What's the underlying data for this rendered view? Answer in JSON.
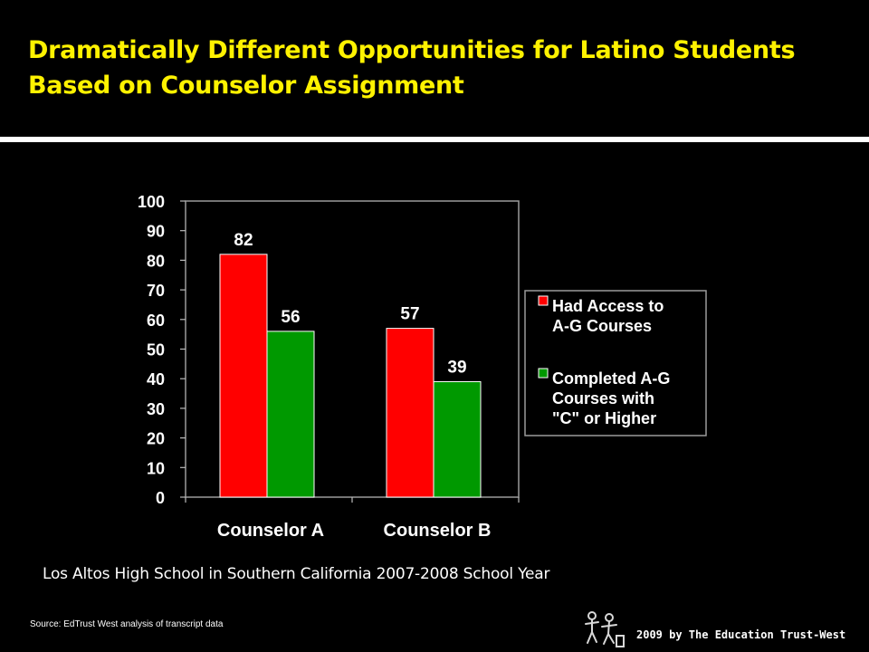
{
  "slide": {
    "title_line1": "Dramatically Different Opportunities for Latino Students",
    "title_line2": "Based on Counselor Assignment",
    "caption": "Los Altos High School in Southern California 2007-2008 School Year",
    "source": "Source: EdTrust West analysis of transcript data",
    "copyright": "2009 by The Education Trust-West",
    "logo_icon": "education-trust-west-logo-icon"
  },
  "colors": {
    "title": "#FFF200",
    "series_access": "#FF0000",
    "series_completed": "#009900",
    "background": "#000000"
  },
  "chart_data": {
    "type": "bar",
    "categories": [
      "Counselor A",
      "Counselor B"
    ],
    "series": [
      {
        "name": "Had Access to A-G Courses",
        "legend_lines": [
          "Had Access to",
          "A-G Courses"
        ],
        "values": [
          82,
          57
        ],
        "color": "#FF0000"
      },
      {
        "name": "Completed A-G Courses with \"C\" or Higher",
        "legend_lines": [
          "Completed A-G",
          "Courses with",
          "\"C\" or Higher"
        ],
        "values": [
          56,
          39
        ],
        "color": "#009900"
      }
    ],
    "data_labels": [
      [
        "82",
        "57"
      ],
      [
        "56",
        "39"
      ]
    ],
    "ylim": [
      0,
      100
    ],
    "yticks": [
      0,
      10,
      20,
      30,
      40,
      50,
      60,
      70,
      80,
      90,
      100
    ],
    "xlabel": "",
    "ylabel": "",
    "grid": false,
    "legend_position": "right"
  }
}
